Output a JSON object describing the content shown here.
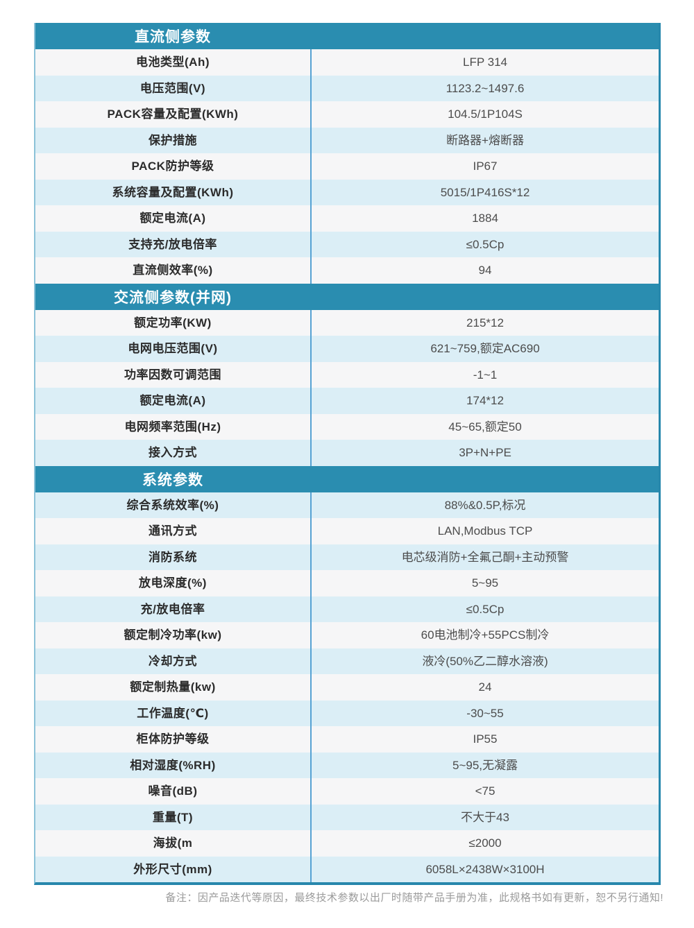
{
  "colors": {
    "accent_teal": "#2A8DB0",
    "row_gray": "#F6F6F7",
    "row_blue": "#DBEEF6",
    "divider_blue": "#56A2D3",
    "border_light": "#8CC2D8",
    "border_dark": "#2787AC",
    "label_text": "#2B2B2B",
    "value_text": "#4C4C4C",
    "footer_text": "#9A9A9A",
    "page_bg": "#FFFFFF"
  },
  "sections": [
    {
      "title": "直流侧参数",
      "first_row_shade": "gray",
      "rows": [
        {
          "label": "电池类型(Ah)",
          "value": "LFP 314"
        },
        {
          "label": "电压范围(V)",
          "value": "1123.2~1497.6"
        },
        {
          "label": "PACK容量及配置(KWh)",
          "value": "104.5/1P104S"
        },
        {
          "label": "保护措施",
          "value": "断路器+熔断器"
        },
        {
          "label": "PACK防护等级",
          "value": "IP67"
        },
        {
          "label": "系统容量及配置(KWh)",
          "value": "5015/1P416S*12"
        },
        {
          "label": "额定电流(A)",
          "value": "1884"
        },
        {
          "label": "支持充/放电倍率",
          "value": "≤0.5Cp"
        },
        {
          "label": "直流侧效率(%)",
          "value": "94"
        }
      ]
    },
    {
      "title": "交流侧参数(并网)",
      "first_row_shade": "gray",
      "rows": [
        {
          "label": "额定功率(KW)",
          "value": "215*12"
        },
        {
          "label": "电网电压范围(V)",
          "value": "621~759,额定AC690"
        },
        {
          "label": "功率因数可调范围",
          "value": "-1~1"
        },
        {
          "label": "额定电流(A)",
          "value": "174*12"
        },
        {
          "label": "电网频率范围(Hz)",
          "value": "45~65,额定50"
        },
        {
          "label": "接入方式",
          "value": "3P+N+PE"
        }
      ]
    },
    {
      "title": "系统参数",
      "first_row_shade": "blue",
      "rows": [
        {
          "label": "综合系统效率(%)",
          "value": "88%&0.5P,标况"
        },
        {
          "label": "通讯方式",
          "value": "LAN,Modbus TCP"
        },
        {
          "label": "消防系统",
          "value": "电芯级消防+全氟己酮+主动预警"
        },
        {
          "label": "放电深度(%)",
          "value": "5~95"
        },
        {
          "label": "充/放电倍率",
          "value": "≤0.5Cp"
        },
        {
          "label": "额定制冷功率(kw)",
          "value": "60电池制冷+55PCS制冷"
        },
        {
          "label": "冷却方式",
          "value": "液冷(50%乙二醇水溶液)"
        },
        {
          "label": "额定制热量(kw)",
          "value": "24"
        },
        {
          "label": "工作温度(℃)",
          "value": "-30~55"
        },
        {
          "label": "柜体防护等级",
          "value": "IP55"
        },
        {
          "label": "相对湿度(%RH)",
          "value": "5~95,无凝露"
        },
        {
          "label": "噪音(dB)",
          "value": "<75"
        },
        {
          "label": "重量(T)",
          "value": "不大于43"
        },
        {
          "label": "海拔(m",
          "value": "≤2000"
        },
        {
          "label": "外形尺寸(mm)",
          "value": "6058L×2438W×3100H"
        }
      ]
    }
  ],
  "footer_note": "备注：因产品迭代等原因，最终技术参数以出厂时随带产品手册为准，此规格书如有更新，恕不另行通知!"
}
